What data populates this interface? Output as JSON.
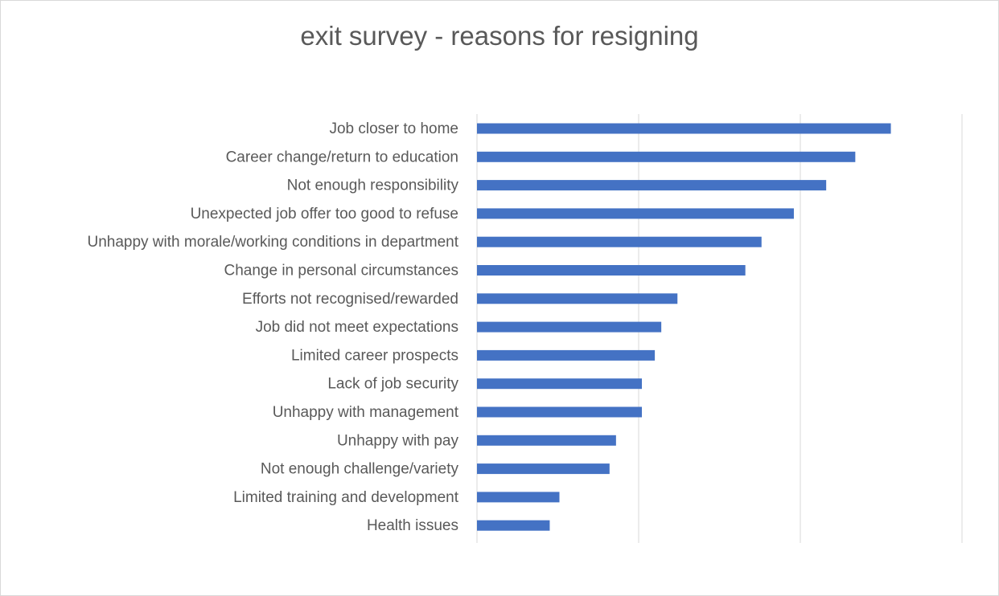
{
  "chart_data": {
    "type": "bar",
    "orientation": "horizontal",
    "title": "exit survey - reasons for resigning",
    "xlabel": "",
    "ylabel": "",
    "xlim": [
      0,
      3
    ],
    "grid": true,
    "legend": "none",
    "bar_color": "#4472C4",
    "categories": [
      "Job closer to home",
      "Career change/return to education",
      "Not enough responsibility",
      "Unexpected job offer too good to refuse",
      "Unhappy with morale/working conditions in department",
      "Change in personal circumstances",
      "Efforts not recognised/rewarded",
      "Job did not meet expectations",
      "Limited career prospects",
      "Lack of job security",
      "Unhappy with management",
      "Unhappy with pay",
      "Not enough challenge/variety",
      "Limited training and development",
      "Health issues"
    ],
    "values": [
      2.56,
      2.34,
      2.16,
      1.96,
      1.76,
      1.66,
      1.24,
      1.14,
      1.1,
      1.02,
      1.02,
      0.86,
      0.82,
      0.51,
      0.45
    ]
  }
}
